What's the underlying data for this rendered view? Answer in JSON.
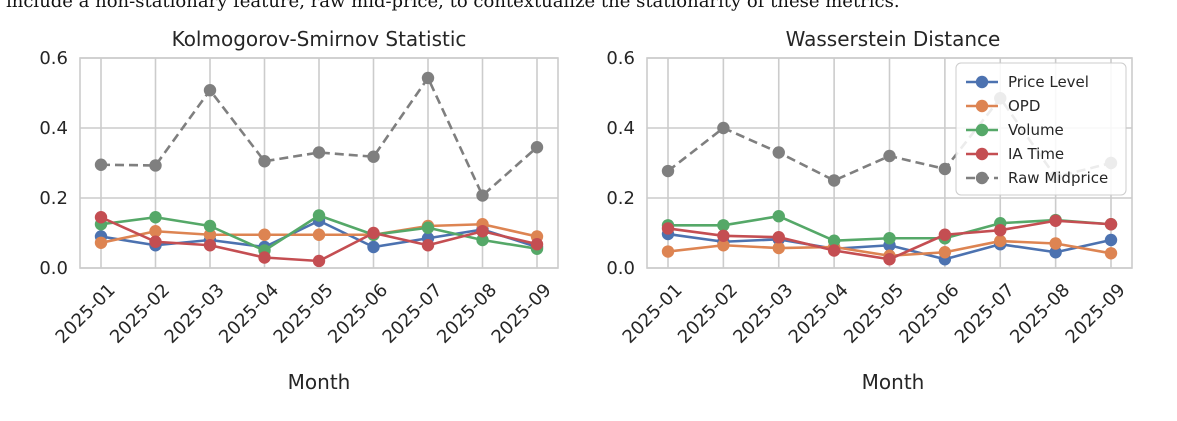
{
  "caption_fragment": "include a non-stationary feature, raw mid-price, to contextualize the stationarity of these metrics.",
  "colors": {
    "Price Level": "#4c72b0",
    "OPD": "#dd8452",
    "Volume": "#55a868",
    "IA Time": "#c44e52",
    "Raw Midprice": "#7f7f7f"
  },
  "chart_data": [
    {
      "type": "line",
      "title": "Kolmogorov-Smirnov Statistic",
      "xlabel": "Month",
      "ylabel": "",
      "ylim": [
        0.0,
        0.6
      ],
      "yticks": [
        "0.0",
        "0.2",
        "0.4",
        "0.6"
      ],
      "grid": true,
      "legend": null,
      "x": [
        "2025-01",
        "2025-02",
        "2025-03",
        "2025-04",
        "2025-05",
        "2025-06",
        "2025-07",
        "2025-08",
        "2025-09"
      ],
      "series": [
        {
          "name": "Price Level",
          "style": "solid",
          "values": [
            0.09,
            0.065,
            0.08,
            0.06,
            0.135,
            0.06,
            0.085,
            0.11,
            0.06
          ]
        },
        {
          "name": "OPD",
          "style": "solid",
          "values": [
            0.072,
            0.105,
            0.095,
            0.095,
            0.095,
            0.095,
            0.12,
            0.125,
            0.09
          ]
        },
        {
          "name": "Volume",
          "style": "solid",
          "values": [
            0.125,
            0.145,
            0.12,
            0.05,
            0.15,
            0.095,
            0.115,
            0.08,
            0.055
          ]
        },
        {
          "name": "IA Time",
          "style": "solid",
          "values": [
            0.145,
            0.075,
            0.065,
            0.03,
            0.02,
            0.1,
            0.065,
            0.105,
            0.068
          ]
        },
        {
          "name": "Raw Midprice",
          "style": "dashed",
          "values": [
            0.295,
            0.293,
            0.508,
            0.305,
            0.33,
            0.318,
            0.543,
            0.207,
            0.345
          ]
        }
      ]
    },
    {
      "type": "line",
      "title": "Wasserstein Distance",
      "xlabel": "Month",
      "ylabel": "",
      "ylim": [
        0.0,
        0.6
      ],
      "yticks": [
        "0.0",
        "0.2",
        "0.4",
        "0.6"
      ],
      "grid": true,
      "legend": "top-right",
      "x": [
        "2025-01",
        "2025-02",
        "2025-03",
        "2025-04",
        "2025-05",
        "2025-06",
        "2025-07",
        "2025-08",
        "2025-09"
      ],
      "series": [
        {
          "name": "Price Level",
          "style": "solid",
          "values": [
            0.097,
            0.075,
            0.082,
            0.055,
            0.065,
            0.025,
            0.068,
            0.045,
            0.08
          ]
        },
        {
          "name": "OPD",
          "style": "solid",
          "values": [
            0.047,
            0.065,
            0.057,
            0.06,
            0.035,
            0.045,
            0.077,
            0.07,
            0.042
          ]
        },
        {
          "name": "Volume",
          "style": "solid",
          "values": [
            0.122,
            0.122,
            0.148,
            0.078,
            0.085,
            0.085,
            0.128,
            0.137,
            0.125
          ]
        },
        {
          "name": "IA Time",
          "style": "solid",
          "values": [
            0.113,
            0.092,
            0.088,
            0.05,
            0.025,
            0.095,
            0.108,
            0.135,
            0.125
          ]
        },
        {
          "name": "Raw Midprice",
          "style": "dashed",
          "values": [
            0.277,
            0.4,
            0.33,
            0.25,
            0.32,
            0.283,
            0.485,
            0.26,
            0.3
          ]
        }
      ]
    }
  ]
}
